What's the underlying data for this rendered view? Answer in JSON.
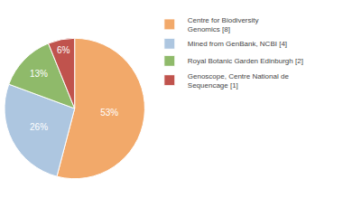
{
  "chart_data": {
    "type": "pie",
    "categories": [
      "Centre for Biodiversity\nGenomics [8]",
      "Mined from GenBank, NCBI [4]",
      "Royal Botanic Garden Edinburgh [2]",
      "Genoscope, Centre National de\nSequencage [1]"
    ],
    "values": [
      53,
      26,
      13,
      6
    ],
    "value_labels": [
      "53%",
      "26%",
      "13%",
      "6%"
    ],
    "colors": [
      "#f2a96a",
      "#adc6e0",
      "#8fba6a",
      "#c0534d"
    ],
    "data_labels": true,
    "legend": "right"
  }
}
